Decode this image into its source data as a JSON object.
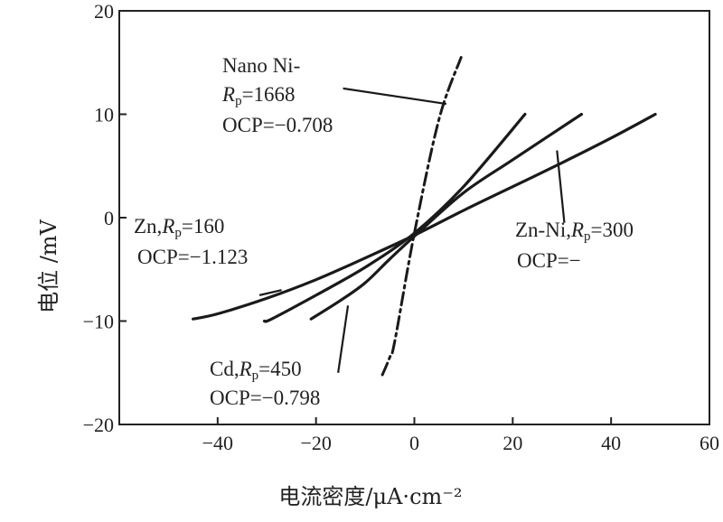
{
  "chart_data": {
    "type": "line",
    "title": "",
    "xlabel": "电流密度/μA·cm⁻²",
    "ylabel": "电位 /mV",
    "xlim": [
      -60,
      60
    ],
    "ylim": [
      -20,
      20
    ],
    "x_ticks": [
      -40,
      -20,
      0,
      20,
      40,
      60
    ],
    "y_ticks": [
      -20,
      -10,
      0,
      10,
      20
    ],
    "grid": false,
    "legend": "none",
    "series": [
      {
        "key": "nano_ni",
        "style": "dashdot",
        "x": [
          -6.5,
          -5,
          -4,
          0,
          5,
          9.5
        ],
        "y": [
          -15.2,
          -13.5,
          -12,
          -1.5,
          9.5,
          15.5
        ]
      },
      {
        "key": "zn_ni",
        "style": "solid",
        "x": [
          -30.5,
          -29,
          -20,
          -10,
          0,
          10,
          22.5
        ],
        "y": [
          -10,
          -9.8,
          -7.5,
          -4.8,
          -1.5,
          3,
          10
        ]
      },
      {
        "key": "cd",
        "style": "solid",
        "x": [
          -21,
          -15,
          -10,
          -5,
          0,
          10,
          20,
          34
        ],
        "y": [
          -9.8,
          -8,
          -6.3,
          -4,
          -1.8,
          2.4,
          5.6,
          10
        ]
      },
      {
        "key": "zn",
        "style": "solid",
        "x": [
          -45,
          -40,
          -30,
          -20,
          -10,
          0,
          10,
          20,
          30,
          40,
          49
        ],
        "y": [
          -9.8,
          -9.3,
          -7.8,
          -6,
          -3.9,
          -1.7,
          0.7,
          3,
          5.3,
          7.7,
          10
        ]
      }
    ],
    "annotations": {
      "nano_ni": {
        "line1": "Nano Ni-",
        "rp_symbol": "R",
        "rp_sub": "p",
        "rp_value": "=1668",
        "ocp": "OCP=−0.708"
      },
      "zn": {
        "name": "Zn,",
        "rp_symbol": "R",
        "rp_sub": "p",
        "rp_value": "=160",
        "ocp": "OCP=−1.123"
      },
      "zn_ni": {
        "name": "Zn-Ni,",
        "rp_symbol": "R",
        "rp_sub": "p",
        "rp_value": "=300",
        "ocp": "OCP=−"
      },
      "cd": {
        "name": "Cd,",
        "rp_symbol": "R",
        "rp_sub": "p",
        "rp_value": "=450",
        "ocp": "OCP=−0.798"
      }
    }
  }
}
